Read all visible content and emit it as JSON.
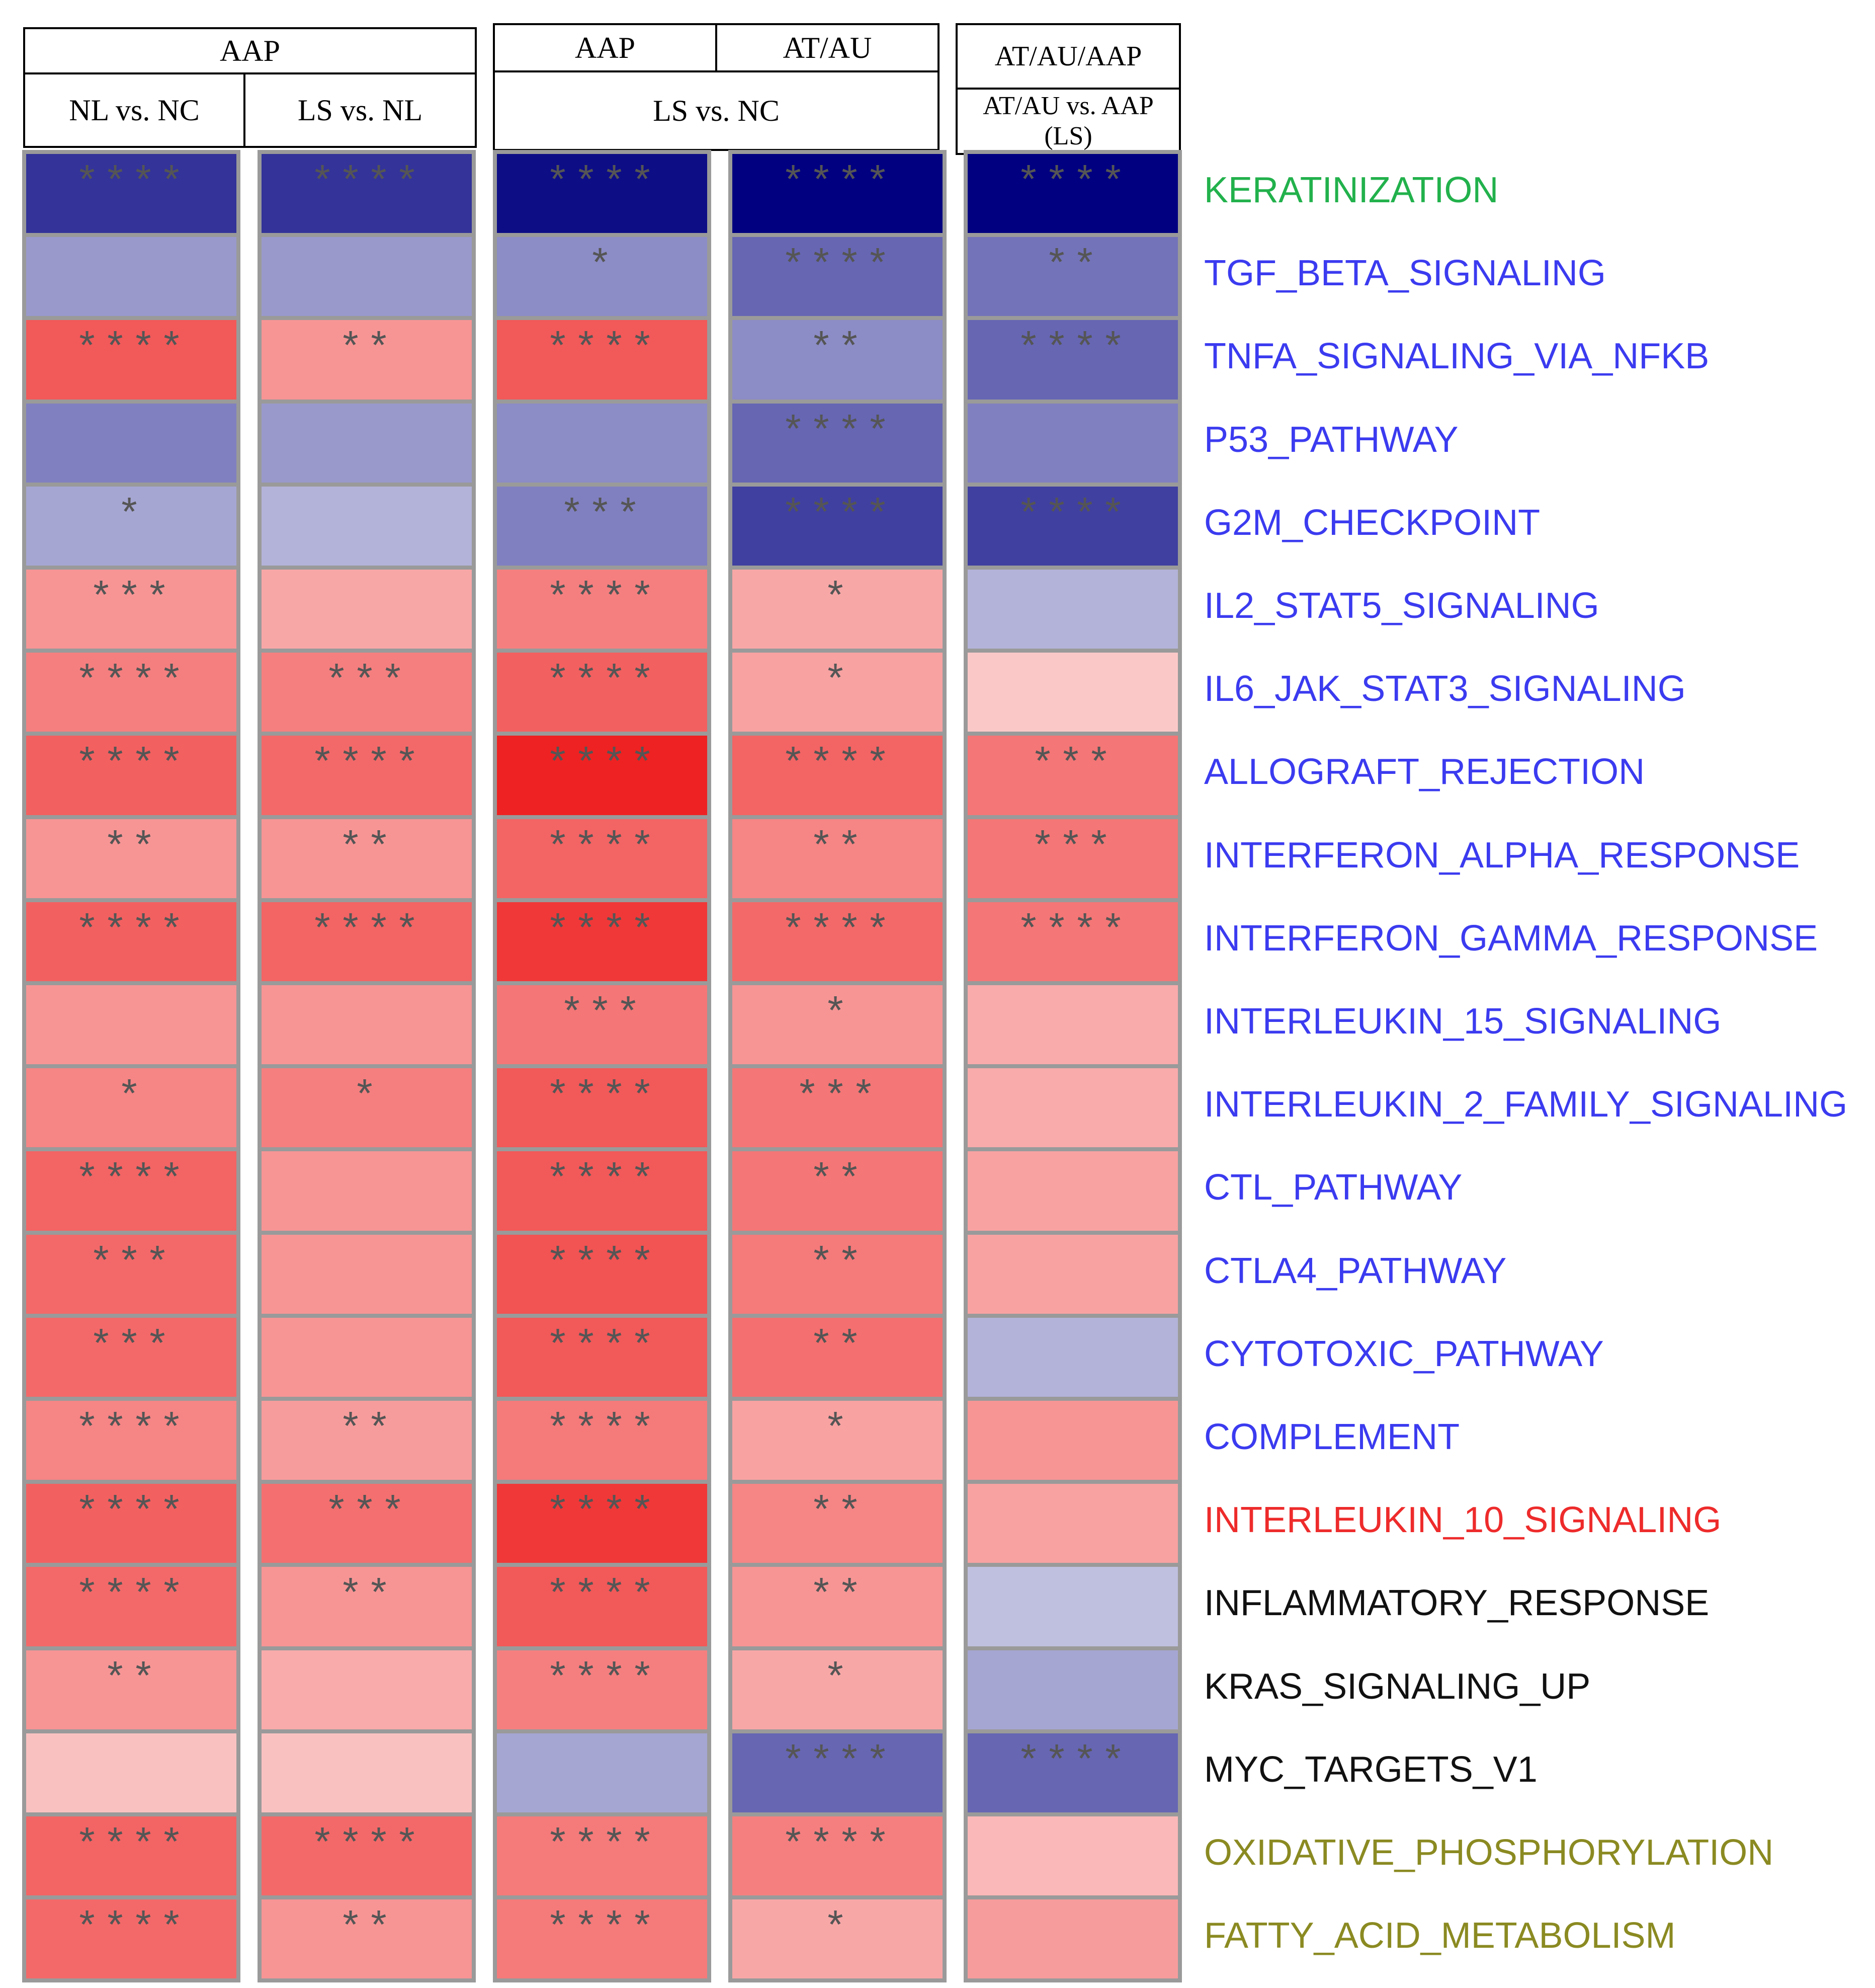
{
  "chart_data": {
    "type": "heatmap",
    "title": "",
    "header_groups": [
      {
        "label": "AAP",
        "sublabels": [
          "NL vs. NC",
          "LS vs. NL"
        ]
      },
      {
        "labels": [
          "AAP",
          "AT/AU"
        ],
        "sublabel": "LS vs. NC"
      },
      {
        "label": "AT/AU/AAP",
        "sublabel": "AT/AU vs. AAP (LS)"
      }
    ],
    "columns": [
      "AAP NL vs. NC",
      "AAP LS vs. NL",
      "AAP LS vs. NC",
      "AT/AU LS vs. NC",
      "AT/AU vs. AAP (LS)"
    ],
    "color_scale": {
      "negative": "#000080",
      "zero": "#ffffff",
      "positive": "#ee2222",
      "range": [
        -1,
        1
      ]
    },
    "rows": [
      {
        "label": "KERATINIZATION",
        "color": "#22b14c",
        "values": [
          -0.8,
          -0.8,
          -0.95,
          -1.0,
          -1.0
        ],
        "significance": [
          "****",
          "****",
          "****",
          "****",
          "****"
        ]
      },
      {
        "label": "TGF_BETA_SIGNALING",
        "color": "#3b3bf0",
        "values": [
          -0.4,
          -0.4,
          -0.45,
          -0.6,
          -0.55
        ],
        "significance": [
          "",
          "",
          "*",
          "****",
          "**"
        ]
      },
      {
        "label": "TNFA_SIGNALING_VIA_NFKB",
        "color": "#3b3bf0",
        "values": [
          0.75,
          0.48,
          0.75,
          -0.45,
          -0.6
        ],
        "significance": [
          "****",
          "**",
          "****",
          "**",
          "****"
        ]
      },
      {
        "label": "P53_PATHWAY",
        "color": "#3b3bf0",
        "values": [
          -0.5,
          -0.4,
          -0.45,
          -0.6,
          -0.5
        ],
        "significance": [
          "",
          "",
          "",
          "****",
          ""
        ]
      },
      {
        "label": "G2M_CHECKPOINT",
        "color": "#3b3bf0",
        "values": [
          -0.35,
          -0.3,
          -0.5,
          -0.75,
          -0.75
        ],
        "significance": [
          "*",
          "",
          "***",
          "****",
          "****"
        ]
      },
      {
        "label": "IL2_STAT5_SIGNALING",
        "color": "#3b3bf0",
        "values": [
          0.48,
          0.4,
          0.58,
          0.4,
          -0.3
        ],
        "significance": [
          "***",
          "",
          "****",
          "*",
          ""
        ]
      },
      {
        "label": "IL6_JAK_STAT3_SIGNALING",
        "color": "#3b3bf0",
        "values": [
          0.58,
          0.58,
          0.72,
          0.42,
          0.25
        ],
        "significance": [
          "****",
          "***",
          "****",
          "*",
          ""
        ]
      },
      {
        "label": "ALLOGRAFT_REJECTION",
        "color": "#3b3bf0",
        "values": [
          0.72,
          0.68,
          1.0,
          0.7,
          0.62
        ],
        "significance": [
          "****",
          "****",
          "****",
          "****",
          "***"
        ]
      },
      {
        "label": "INTERFERON_ALPHA_RESPONSE",
        "color": "#3b3bf0",
        "values": [
          0.48,
          0.48,
          0.7,
          0.55,
          0.62
        ],
        "significance": [
          "**",
          "**",
          "****",
          "**",
          "***"
        ]
      },
      {
        "label": "INTERFERON_GAMMA_RESPONSE",
        "color": "#3b3bf0",
        "values": [
          0.72,
          0.7,
          0.9,
          0.68,
          0.62
        ],
        "significance": [
          "****",
          "****",
          "****",
          "****",
          "****"
        ]
      },
      {
        "label": "INTERLEUKIN_15_SIGNALING",
        "color": "#3b3bf0",
        "values": [
          0.48,
          0.48,
          0.62,
          0.48,
          0.38
        ],
        "significance": [
          "",
          "",
          "***",
          "*",
          ""
        ]
      },
      {
        "label": "INTERLEUKIN_2_FAMILY_SIGNALING",
        "color": "#3b3bf0",
        "values": [
          0.55,
          0.58,
          0.75,
          0.62,
          0.38
        ],
        "significance": [
          "*",
          "*",
          "****",
          "***",
          ""
        ]
      },
      {
        "label": "CTL_PATHWAY",
        "color": "#3b3bf0",
        "values": [
          0.7,
          0.48,
          0.75,
          0.62,
          0.42
        ],
        "significance": [
          "****",
          "",
          "****",
          "**",
          ""
        ]
      },
      {
        "label": "CTLA4_PATHWAY",
        "color": "#3b3bf0",
        "values": [
          0.68,
          0.48,
          0.78,
          0.6,
          0.42
        ],
        "significance": [
          "***",
          "",
          "****",
          "**",
          ""
        ]
      },
      {
        "label": "CYTOTOXIC_PATHWAY",
        "color": "#3b3bf0",
        "values": [
          0.68,
          0.48,
          0.75,
          0.65,
          -0.3
        ],
        "significance": [
          "***",
          "",
          "****",
          "**",
          ""
        ]
      },
      {
        "label": "COMPLEMENT",
        "color": "#3b3bf0",
        "values": [
          0.55,
          0.45,
          0.6,
          0.42,
          0.48
        ],
        "significance": [
          "****",
          "**",
          "****",
          "*",
          ""
        ]
      },
      {
        "label": "INTERLEUKIN_10_SIGNALING",
        "color": "#ee2b2b",
        "values": [
          0.72,
          0.65,
          0.9,
          0.55,
          0.42
        ],
        "significance": [
          "****",
          "***",
          "****",
          "**",
          ""
        ]
      },
      {
        "label": "INFLAMMATORY_RESPONSE",
        "color": "#111111",
        "values": [
          0.68,
          0.48,
          0.75,
          0.48,
          -0.25
        ],
        "significance": [
          "****",
          "**",
          "****",
          "**",
          ""
        ]
      },
      {
        "label": "KRAS_SIGNALING_UP",
        "color": "#111111",
        "values": [
          0.48,
          0.38,
          0.58,
          0.4,
          -0.35
        ],
        "significance": [
          "**",
          "",
          "****",
          "*",
          ""
        ]
      },
      {
        "label": "MYC_TARGETS_V1",
        "color": "#111111",
        "values": [
          0.28,
          0.28,
          -0.35,
          -0.6,
          -0.6
        ],
        "significance": [
          "",
          "",
          "",
          "****",
          "****"
        ]
      },
      {
        "label": "OXIDATIVE_PHOSPHORYLATION",
        "color": "#8a8a22",
        "values": [
          0.7,
          0.68,
          0.6,
          0.58,
          0.32
        ],
        "significance": [
          "****",
          "****",
          "****",
          "****",
          ""
        ]
      },
      {
        "label": "FATTY_ACID_METABOLISM",
        "color": "#8a8a22",
        "values": [
          0.68,
          0.48,
          0.6,
          0.4,
          0.45
        ],
        "significance": [
          "****",
          "**",
          "****",
          "*",
          ""
        ]
      }
    ]
  }
}
